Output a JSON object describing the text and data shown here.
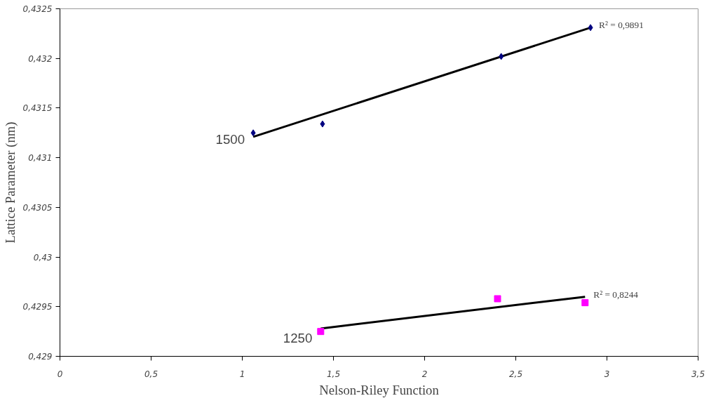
{
  "chart_data": {
    "type": "scatter",
    "xlabel": "Nelson-Riley Function",
    "ylabel": "Lattice Parameter (nm)",
    "xlim": [
      0,
      3.5
    ],
    "ylim": [
      0.429,
      0.4325
    ],
    "xticks": [
      0,
      {
        "value": 0.5,
        "label": "0,5"
      },
      1,
      {
        "value": 1.5,
        "label": "1,5"
      },
      2,
      {
        "value": 2.5,
        "label": "2,5"
      },
      3,
      {
        "value": 3.5,
        "label": "3,5"
      }
    ],
    "yticks": [
      {
        "value": 0.429,
        "label": "0,429"
      },
      {
        "value": 0.4295,
        "label": "0,4295"
      },
      {
        "value": 0.43,
        "label": "0,43"
      },
      {
        "value": 0.4305,
        "label": "0,4305"
      },
      {
        "value": 0.431,
        "label": "0,431"
      },
      {
        "value": 0.4315,
        "label": "0,4315"
      },
      {
        "value": 0.432,
        "label": "0,432"
      },
      {
        "value": 0.4325,
        "label": "0,4325"
      }
    ],
    "grid": false,
    "series": [
      {
        "name": "1500",
        "marker": "diamond",
        "color": "#000080",
        "x": [
          1.06,
          1.44,
          2.42,
          2.91
        ],
        "values": [
          0.43125,
          0.43134,
          0.43202,
          0.43231
        ]
      },
      {
        "type": "line",
        "color": "#000000",
        "x": [
          1.06,
          2.91
        ],
        "values": [
          0.43121,
          0.43231
        ]
      },
      {
        "name": "1250",
        "marker": "square",
        "color": "#ff00ff",
        "x": [
          1.43,
          2.4,
          2.88
        ],
        "values": [
          0.42925,
          0.42958,
          0.42954
        ]
      },
      {
        "type": "line",
        "color": "#000000",
        "x": [
          1.43,
          2.88
        ],
        "values": [
          0.42928,
          0.4296
        ]
      }
    ],
    "annotations": [
      {
        "text": "R² = 0,9891",
        "x": 2.91,
        "y": 0.43231
      },
      {
        "text": "R² = 0,8244",
        "x": 2.88,
        "y": 0.4296
      }
    ]
  }
}
